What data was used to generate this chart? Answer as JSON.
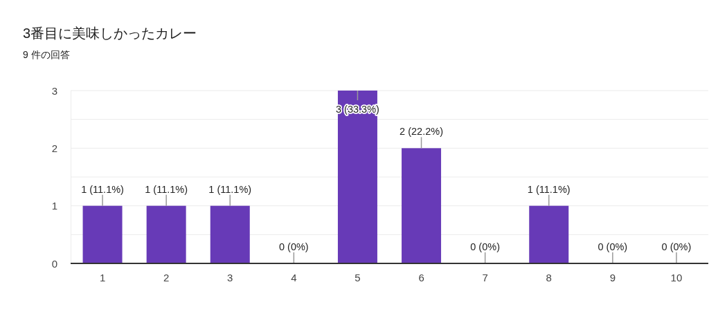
{
  "chart_data": {
    "type": "bar",
    "title": "3番目に美味しかったカレー",
    "subtitle": "9 件の回答",
    "categories": [
      "1",
      "2",
      "3",
      "4",
      "5",
      "6",
      "7",
      "8",
      "9",
      "10"
    ],
    "values": [
      1,
      1,
      1,
      0,
      3,
      2,
      0,
      1,
      0,
      0
    ],
    "color": "#673ab7",
    "value_labels": [
      "1 (11.1%)",
      "1 (11.1%)",
      "1 (11.1%)",
      "0 (0%)",
      "3 (33.3%)",
      "2 (22.2%)",
      "0 (0%)",
      "1 (11.1%)",
      "0 (0%)",
      "0 (0%)"
    ],
    "ylim": [
      0,
      3
    ],
    "yticks": [
      0,
      {
        "value": 0.5,
        "label": null
      },
      1,
      {
        "value": 1.5,
        "label": null
      },
      2,
      {
        "value": 2.5,
        "label": null
      },
      3
    ],
    "grid": "y"
  }
}
